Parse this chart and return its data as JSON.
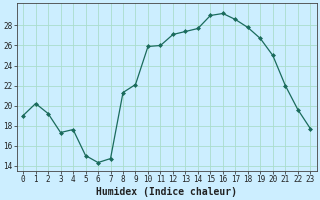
{
  "x": [
    0,
    1,
    2,
    3,
    4,
    5,
    6,
    7,
    8,
    9,
    10,
    11,
    12,
    13,
    14,
    15,
    16,
    17,
    18,
    19,
    20,
    21,
    22,
    23
  ],
  "y": [
    19.0,
    20.2,
    19.2,
    17.3,
    17.6,
    15.0,
    14.3,
    14.7,
    21.3,
    22.1,
    25.9,
    26.0,
    27.1,
    27.4,
    27.7,
    29.0,
    29.2,
    28.6,
    27.8,
    26.7,
    25.0,
    22.0,
    19.6,
    17.7
  ],
  "line_color": "#1a6b5c",
  "marker": "D",
  "marker_size": 2.0,
  "bg_color": "#cceeff",
  "grid_color": "#aaddcc",
  "xlabel": "Humidex (Indice chaleur)",
  "ylim": [
    13.5,
    30.2
  ],
  "xlim": [
    -0.5,
    23.5
  ],
  "yticks": [
    14,
    16,
    18,
    20,
    22,
    24,
    26,
    28
  ],
  "xtick_labels": [
    "0",
    "1",
    "2",
    "3",
    "4",
    "5",
    "6",
    "7",
    "8",
    "9",
    "10",
    "11",
    "12",
    "13",
    "14",
    "15",
    "16",
    "17",
    "18",
    "19",
    "20",
    "21",
    "22",
    "23"
  ],
  "tick_fontsize": 5.5,
  "xlabel_fontsize": 7.0
}
